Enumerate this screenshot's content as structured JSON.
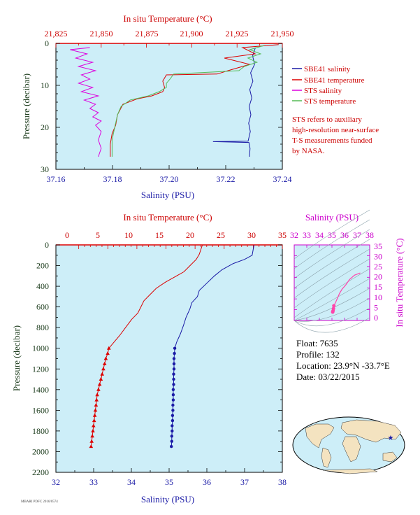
{
  "colors": {
    "plot_bg": "#cdeef8",
    "sbe_salinity": "#1a1aa6",
    "sbe_temperature": "#dd0000",
    "sts_salinity": "#dd00dd",
    "sts_temperature": "#55bb55",
    "ts_curve": "#ff44aa",
    "land": "#f4e3c0",
    "ocean": "#cdeef8"
  },
  "chart_data": [
    {
      "id": "near-surface",
      "type": "line",
      "top_axis": {
        "label": "In situ Temperature (°C)",
        "lim": [
          21.825,
          21.95
        ],
        "ticks": [
          "21,825",
          "21,850",
          "21,875",
          "21,900",
          "21,925",
          "21,950"
        ]
      },
      "bottom_axis": {
        "label": "Salinity (PSU)",
        "lim": [
          37.16,
          37.24
        ],
        "ticks": [
          "37.16",
          "37.18",
          "37.20",
          "37.22",
          "37.24"
        ]
      },
      "left_axis": {
        "label": "Pressure (decibar)",
        "lim": [
          0,
          30
        ],
        "ticks": [
          "0",
          "10",
          "20",
          "30"
        ]
      },
      "legend": [
        {
          "name": "SBE41 salinity",
          "color_key": "sbe_salinity"
        },
        {
          "name": "SBE41 temperature",
          "color_key": "sbe_temperature"
        },
        {
          "name": "STS salinity",
          "color_key": "sts_salinity"
        },
        {
          "name": "STS temperature",
          "color_key": "sts_temperature"
        }
      ],
      "note": [
        "STS refers to auxiliary",
        "high-resolution near-surface",
        "T-S measurements funded",
        "by NASA."
      ],
      "series": [
        {
          "name": "SBE41 salinity",
          "axis": "bottom",
          "points": [
            [
              37.2305,
              1
            ],
            [
              37.2295,
              3
            ],
            [
              37.2302,
              5
            ],
            [
              37.2288,
              7
            ],
            [
              37.2296,
              9
            ],
            [
              37.2285,
              11
            ],
            [
              37.2292,
              13
            ],
            [
              37.2283,
              15
            ],
            [
              37.2289,
              17
            ],
            [
              37.2281,
              19
            ],
            [
              37.2287,
              21
            ],
            [
              37.2279,
              23.3
            ],
            [
              37.2155,
              23.4
            ],
            [
              37.2282,
              23.6
            ],
            [
              37.2286,
              25
            ],
            [
              37.2284,
              27
            ]
          ]
        },
        {
          "name": "SBE41 temperature",
          "axis": "top",
          "points": [
            [
              21.948,
              0.3
            ],
            [
              21.928,
              1
            ],
            [
              21.935,
              2.5
            ],
            [
              21.918,
              3.5
            ],
            [
              21.932,
              5
            ],
            [
              21.92,
              6.5
            ],
            [
              21.914,
              7.3
            ],
            [
              21.886,
              7.5
            ],
            [
              21.884,
              9
            ],
            [
              21.885,
              10.5
            ],
            [
              21.884,
              11.5
            ],
            [
              21.878,
              12.5
            ],
            [
              21.87,
              13.2
            ],
            [
              21.862,
              14.5
            ],
            [
              21.859,
              17
            ],
            [
              21.858,
              19.5
            ],
            [
              21.856,
              21.5
            ],
            [
              21.855,
              24
            ],
            [
              21.855,
              27
            ]
          ]
        },
        {
          "name": "STS salinity",
          "axis": "bottom",
          "points": [
            [
              37.172,
              1
            ],
            [
              37.165,
              1.5
            ],
            [
              37.171,
              2.5
            ],
            [
              37.167,
              3.5
            ],
            [
              37.173,
              4.5
            ],
            [
              37.168,
              5.5
            ],
            [
              37.174,
              6.5
            ],
            [
              37.169,
              7.5
            ],
            [
              37.172,
              8.5
            ],
            [
              37.168,
              9.5
            ],
            [
              37.173,
              10.5
            ],
            [
              37.169,
              11.5
            ],
            [
              37.175,
              12.5
            ],
            [
              37.17,
              13.5
            ],
            [
              37.174,
              14.5
            ],
            [
              37.172,
              15.5
            ],
            [
              37.175,
              16.5
            ],
            [
              37.173,
              17.5
            ],
            [
              37.176,
              18.5
            ],
            [
              37.174,
              19.5
            ],
            [
              37.176,
              21
            ],
            [
              37.175,
              23
            ],
            [
              37.176,
              25
            ],
            [
              37.175,
              27
            ]
          ]
        },
        {
          "name": "STS temperature",
          "axis": "top",
          "points": [
            [
              21.94,
              0.5
            ],
            [
              21.932,
              1.5
            ],
            [
              21.938,
              2.5
            ],
            [
              21.931,
              3.5
            ],
            [
              21.936,
              4.5
            ],
            [
              21.929,
              5.5
            ],
            [
              21.926,
              6.5
            ],
            [
              21.89,
              7.3
            ],
            [
              21.888,
              8.5
            ],
            [
              21.886,
              9.5
            ],
            [
              21.886,
              10.5
            ],
            [
              21.882,
              11.5
            ],
            [
              21.876,
              12.5
            ],
            [
              21.866,
              13.5
            ],
            [
              21.861,
              15
            ],
            [
              21.859,
              17
            ],
            [
              21.858,
              19
            ],
            [
              21.857,
              21
            ],
            [
              21.856,
              23
            ],
            [
              21.856,
              25
            ],
            [
              21.856,
              27
            ]
          ]
        }
      ]
    },
    {
      "id": "full-profile",
      "type": "line",
      "top_axis": {
        "label": "In situ Temperature (°C)",
        "lim": [
          -2,
          35
        ],
        "ticks": [
          "0",
          "5",
          "10",
          "15",
          "20",
          "25",
          "30",
          "35"
        ]
      },
      "bottom_axis": {
        "label": "Salinity (PSU)",
        "lim": [
          32,
          38
        ],
        "ticks": [
          "32",
          "33",
          "34",
          "35",
          "36",
          "37",
          "38"
        ]
      },
      "left_axis": {
        "label": "Pressure (decibar)",
        "lim": [
          0,
          2200
        ],
        "ticks": [
          "0",
          "200",
          "400",
          "600",
          "800",
          "1000",
          "1200",
          "1400",
          "1600",
          "1800",
          "2000",
          "2200"
        ]
      },
      "series": [
        {
          "name": "Temperature",
          "axis": "top",
          "points": [
            [
              22,
              0
            ],
            [
              21.5,
              90
            ],
            [
              21,
              140
            ],
            [
              20,
              200
            ],
            [
              19,
              260
            ],
            [
              17.5,
              310
            ],
            [
              16,
              360
            ],
            [
              14.5,
              420
            ],
            [
              13.5,
              480
            ],
            [
              12.5,
              540
            ],
            [
              12,
              600
            ],
            [
              11.5,
              660
            ],
            [
              10.5,
              720
            ],
            [
              9.5,
              800
            ],
            [
              8.5,
              880
            ],
            [
              7.5,
              950
            ],
            [
              6.8,
              1000
            ],
            [
              6.6,
              1050
            ],
            [
              6.3,
              1100
            ],
            [
              6.1,
              1150
            ],
            [
              5.9,
              1200
            ],
            [
              5.7,
              1250
            ],
            [
              5.5,
              1300
            ],
            [
              5.3,
              1350
            ],
            [
              5.1,
              1400
            ],
            [
              4.9,
              1450
            ],
            [
              4.8,
              1500
            ],
            [
              4.7,
              1550
            ],
            [
              4.6,
              1600
            ],
            [
              4.5,
              1650
            ],
            [
              4.4,
              1700
            ],
            [
              4.3,
              1750
            ],
            [
              4.2,
              1800
            ],
            [
              4.1,
              1850
            ],
            [
              4.0,
              1900
            ],
            [
              3.9,
              1950
            ]
          ]
        },
        {
          "name": "Salinity",
          "axis": "bottom",
          "points": [
            [
              37.25,
              0
            ],
            [
              37.2,
              100
            ],
            [
              37.0,
              140
            ],
            [
              36.7,
              180
            ],
            [
              36.4,
              240
            ],
            [
              36.2,
              300
            ],
            [
              36.0,
              370
            ],
            [
              35.8,
              440
            ],
            [
              35.75,
              500
            ],
            [
              35.6,
              560
            ],
            [
              35.55,
              620
            ],
            [
              35.45,
              700
            ],
            [
              35.38,
              780
            ],
            [
              35.3,
              860
            ],
            [
              35.2,
              940
            ],
            [
              35.15,
              1000
            ],
            [
              35.14,
              1050
            ],
            [
              35.13,
              1100
            ],
            [
              35.13,
              1150
            ],
            [
              35.13,
              1200
            ],
            [
              35.12,
              1250
            ],
            [
              35.12,
              1300
            ],
            [
              35.12,
              1350
            ],
            [
              35.11,
              1400
            ],
            [
              35.11,
              1450
            ],
            [
              35.11,
              1500
            ],
            [
              35.1,
              1550
            ],
            [
              35.1,
              1600
            ],
            [
              35.09,
              1650
            ],
            [
              35.09,
              1700
            ],
            [
              35.08,
              1750
            ],
            [
              35.08,
              1800
            ],
            [
              35.07,
              1850
            ],
            [
              35.07,
              1900
            ],
            [
              35.06,
              1950
            ]
          ]
        }
      ]
    },
    {
      "id": "ts-diagram",
      "type": "line",
      "top_axis": {
        "label": "Salinity (PSU)",
        "lim": [
          32,
          38
        ],
        "ticks": [
          "32",
          "33",
          "34",
          "35",
          "36",
          "37",
          "38"
        ]
      },
      "right_axis": {
        "label": "In situ Temperature (°C)",
        "lim": [
          -2,
          35
        ],
        "ticks": [
          "0",
          "5",
          "10",
          "15",
          "20",
          "25",
          "30",
          "35"
        ]
      },
      "series": [
        {
          "name": "T-S",
          "points": [
            [
              35.06,
              3.9
            ],
            [
              35.09,
              4.5
            ],
            [
              35.12,
              5.5
            ],
            [
              35.15,
              6.8
            ],
            [
              35.3,
              8.5
            ],
            [
              35.45,
              10.5
            ],
            [
              35.6,
              12.5
            ],
            [
              35.8,
              14.5
            ],
            [
              36.1,
              16.5
            ],
            [
              36.4,
              19
            ],
            [
              36.8,
              21
            ],
            [
              37.25,
              22
            ]
          ]
        }
      ]
    }
  ],
  "float_info": {
    "float": "Float:  7635",
    "profile": "Profile:  132",
    "location": "Location:  23.9°N  -33.7°E",
    "date": "Date:  03/22/2015"
  },
  "footer_stamp": "MBARI PDFC 2016/0574"
}
